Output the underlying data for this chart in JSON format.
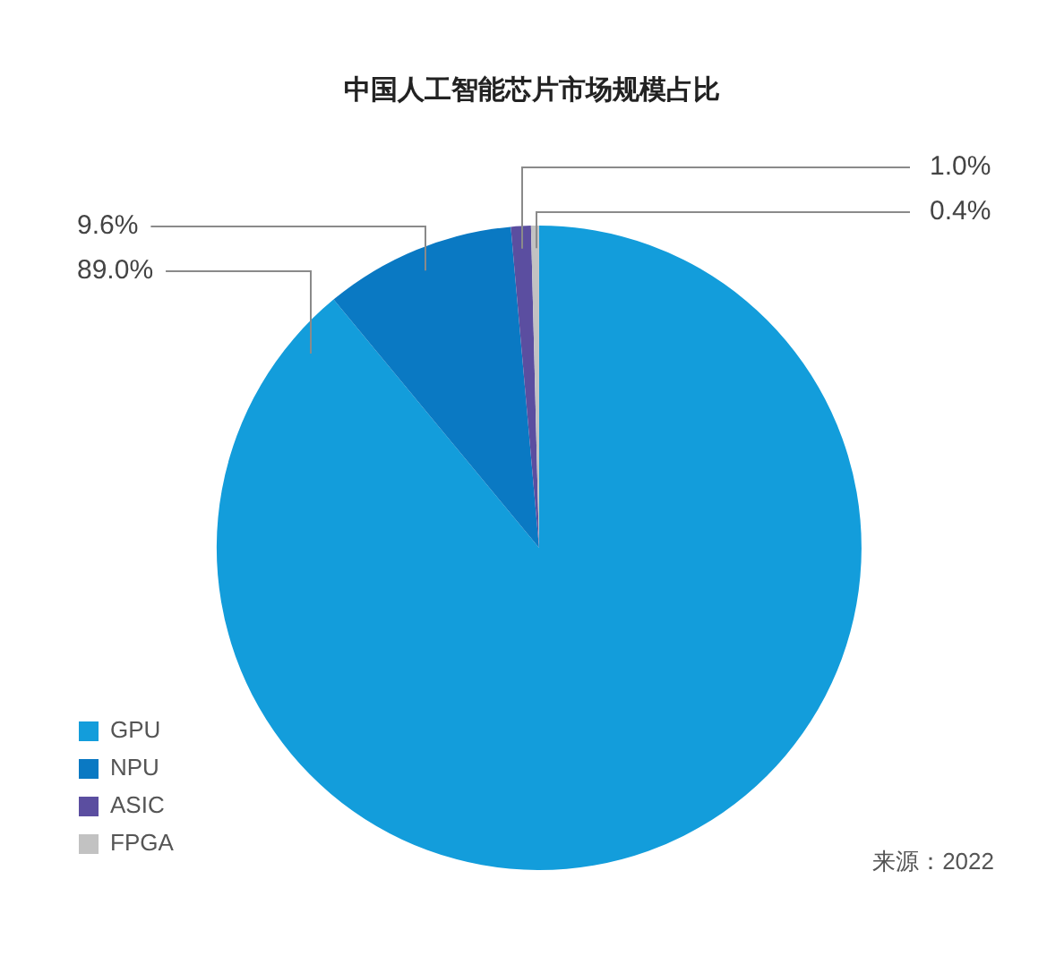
{
  "chart_data": {
    "type": "pie",
    "title": "中国人工智能芯片市场规模占比",
    "categories": [
      "GPU",
      "NPU",
      "ASIC",
      "FPGA"
    ],
    "values": [
      89.0,
      9.6,
      1.0,
      0.4
    ],
    "colors": [
      "#139ddb",
      "#0a79c3",
      "#5b4ea0",
      "#c2c2c2"
    ],
    "value_labels": [
      "89.0%",
      "9.6%",
      "1.0%",
      "0.4%"
    ],
    "legend": "bottom left",
    "annotations": [
      "来源：2022"
    ]
  }
}
